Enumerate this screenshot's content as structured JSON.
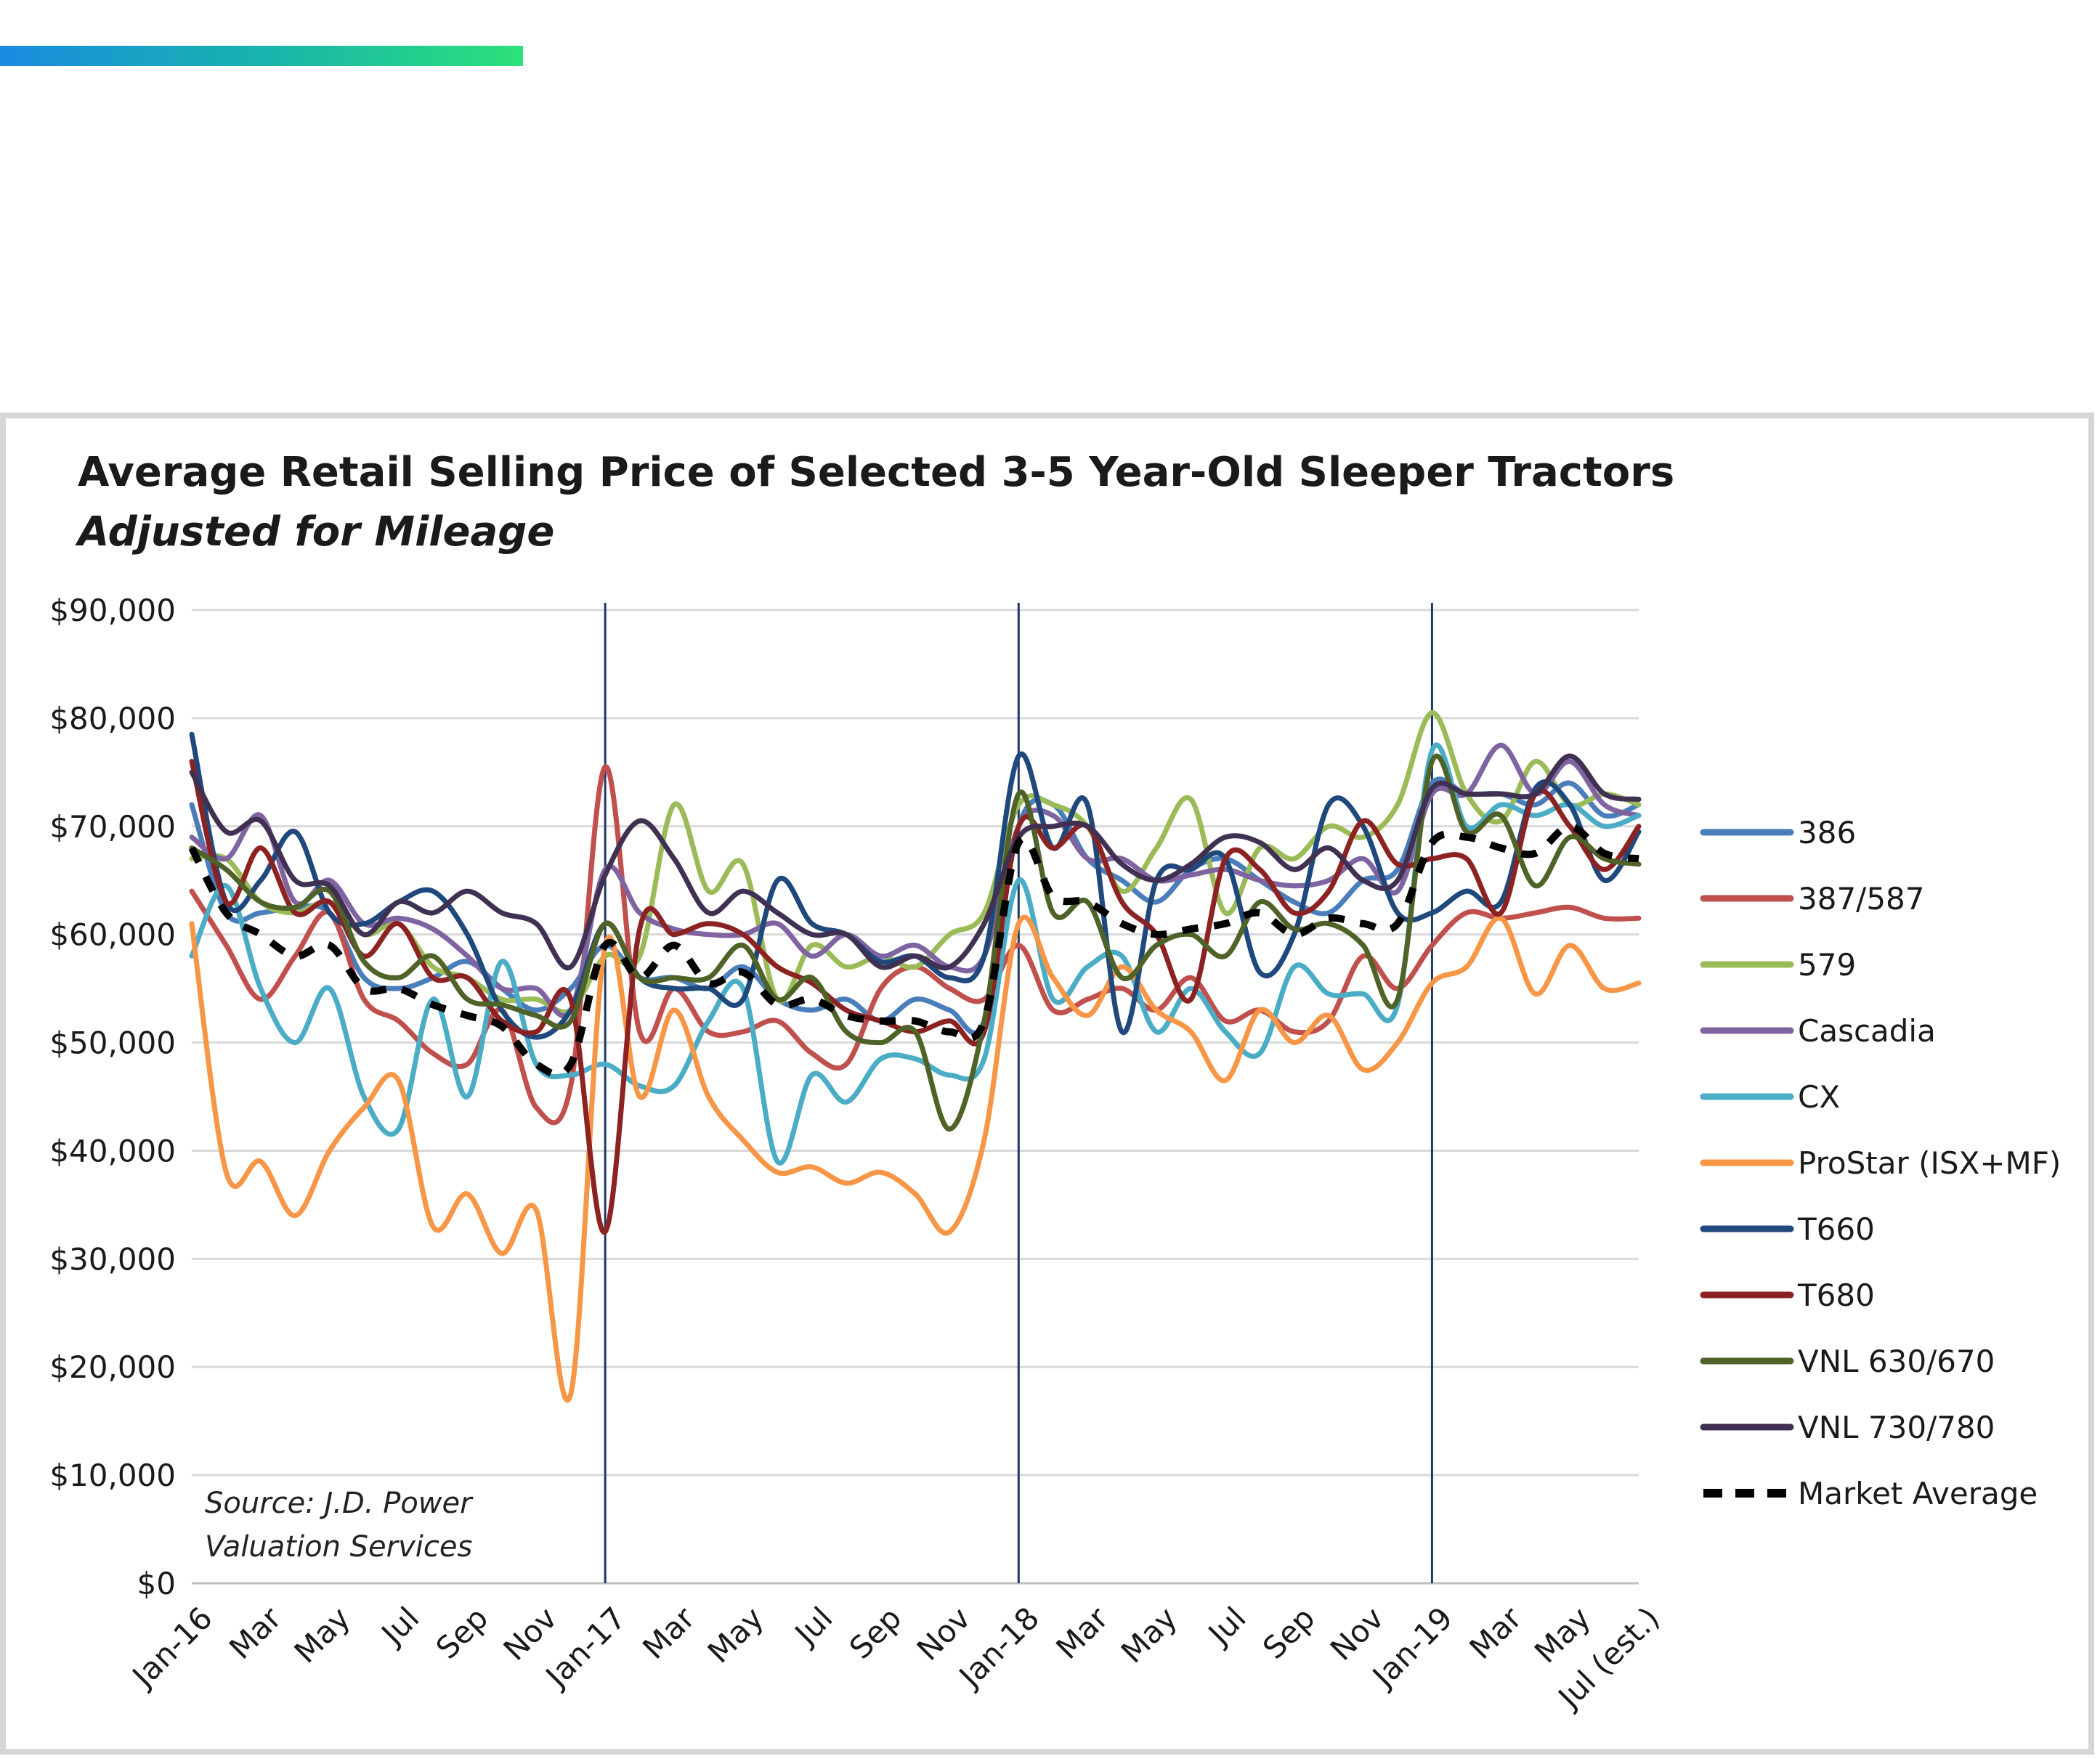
{
  "chart_data": {
    "type": "line",
    "title": "Average Retail Selling Price of Selected 3-5 Year-Old Sleeper Tractors",
    "subtitle": "Adjusted for Mileage",
    "source": [
      "Source: J.D. Power",
      "Valuation Services"
    ],
    "y_ticks": [
      "$0",
      "$10,000",
      "$20,000",
      "$30,000",
      "$40,000",
      "$50,000",
      "$60,000",
      "$70,000",
      "$80,000",
      "$90,000"
    ],
    "ylim": [
      0,
      90000
    ],
    "grid": "horizontal",
    "legend_position": "right",
    "x_ticks": [
      "Jan-16",
      "Mar",
      "May",
      "Jul",
      "Sep",
      "Nov",
      "Jan-17",
      "Mar",
      "May",
      "Jul",
      "Sep",
      "Nov",
      "Jan-18",
      "Mar",
      "May",
      "Jul",
      "Sep",
      "Nov",
      "Jan-19",
      "Mar",
      "May",
      "Jul (est.)"
    ],
    "year_markers": [
      "Jan-17",
      "Jan-18",
      "Jan-19"
    ],
    "x": [
      "Jan-16",
      "Feb-16",
      "Mar-16",
      "Apr-16",
      "May-16",
      "Jun-16",
      "Jul-16",
      "Aug-16",
      "Sep-16",
      "Oct-16",
      "Nov-16",
      "Dec-16",
      "Jan-17",
      "Feb-17",
      "Mar-17",
      "Apr-17",
      "May-17",
      "Jun-17",
      "Jul-17",
      "Aug-17",
      "Sep-17",
      "Oct-17",
      "Nov-17",
      "Dec-17",
      "Jan-18",
      "Feb-18",
      "Mar-18",
      "Apr-18",
      "May-18",
      "Jun-18",
      "Jul-18",
      "Aug-18",
      "Sep-18",
      "Oct-18",
      "Nov-18",
      "Dec-18",
      "Jan-19",
      "Feb-19",
      "Mar-19",
      "Apr-19",
      "May-19",
      "Jun-19",
      "Jul-19"
    ],
    "series": [
      {
        "name": "386",
        "color": "#4a7ebb",
        "dash": false,
        "values": [
          72000,
          62000,
          62000,
          62500,
          62000,
          56000,
          55000,
          56000,
          57500,
          55000,
          53000,
          55000,
          59000,
          56000,
          56000,
          55000,
          57000,
          54000,
          53000,
          54000,
          52000,
          54000,
          53000,
          52000,
          70000,
          72000,
          67000,
          65000,
          63000,
          66000,
          67000,
          65000,
          63000,
          62000,
          65000,
          66000,
          74000,
          73000,
          73000,
          72000,
          74000,
          71000,
          72000
        ]
      },
      {
        "name": "387/587",
        "color": "#c0504d",
        "dash": false,
        "values": [
          64000,
          59000,
          54000,
          58000,
          62000,
          54000,
          52000,
          49000,
          48000,
          53000,
          44000,
          46000,
          75500,
          51000,
          55000,
          51000,
          51000,
          52000,
          49000,
          48000,
          55000,
          57000,
          55000,
          54000,
          59000,
          53000,
          54000,
          55000,
          53000,
          56000,
          52000,
          53000,
          51000,
          52000,
          58000,
          55000,
          59000,
          62000,
          61500,
          62000,
          62500,
          61500,
          61500
        ]
      },
      {
        "name": "579",
        "color": "#9bbb59",
        "dash": false,
        "values": [
          67000,
          67000,
          63000,
          62000,
          63000,
          60000,
          61000,
          57000,
          56000,
          54000,
          54000,
          53000,
          58000,
          58000,
          72000,
          64000,
          66500,
          54000,
          59000,
          57000,
          58000,
          57000,
          60000,
          62000,
          72000,
          72000,
          70000,
          64000,
          68000,
          72500,
          62000,
          68000,
          67000,
          70000,
          69000,
          72000,
          80500,
          73000,
          70500,
          76000,
          72000,
          73000,
          72000
        ]
      },
      {
        "name": "Cascadia",
        "color": "#8064a2",
        "dash": false,
        "values": [
          69000,
          67000,
          71000,
          63000,
          65000,
          61000,
          61500,
          60500,
          58000,
          55000,
          55000,
          53000,
          66000,
          62000,
          60500,
          60000,
          60000,
          61000,
          58000,
          60000,
          58000,
          59000,
          57000,
          58000,
          70000,
          71000,
          67000,
          67000,
          65000,
          65500,
          66000,
          65000,
          64500,
          65000,
          67000,
          64000,
          73000,
          73000,
          77500,
          73000,
          76000,
          72000,
          71000
        ]
      },
      {
        "name": "CX",
        "color": "#4bacc6",
        "dash": false,
        "values": [
          58000,
          64500,
          55000,
          50000,
          55000,
          45000,
          42000,
          54000,
          45000,
          57500,
          48000,
          47000,
          48000,
          46000,
          46000,
          52000,
          55000,
          39000,
          47000,
          44500,
          48500,
          48500,
          47000,
          48500,
          65000,
          54000,
          57000,
          58000,
          51000,
          55000,
          51000,
          49000,
          57000,
          54500,
          54500,
          53500,
          77000,
          70000,
          72000,
          71000,
          72000,
          70000,
          71000
        ]
      },
      {
        "name": "ProStar (ISX+MF)",
        "color": "#f79646",
        "dash": false,
        "values": [
          61000,
          38000,
          39000,
          34000,
          40000,
          44000,
          46500,
          33000,
          36000,
          30500,
          34500,
          17500,
          59000,
          45000,
          53000,
          45000,
          41000,
          38000,
          38500,
          37000,
          38000,
          36000,
          32500,
          41000,
          61000,
          56000,
          52500,
          57000,
          53000,
          51000,
          46500,
          53000,
          50000,
          52500,
          47500,
          50000,
          55500,
          57000,
          61500,
          54500,
          59000,
          55000,
          55500
        ]
      },
      {
        "name": "T660",
        "color": "#1f497d",
        "dash": false,
        "values": [
          78500,
          63000,
          65000,
          69500,
          62000,
          61000,
          63000,
          64000,
          60000,
          53000,
          50500,
          53000,
          61000,
          56000,
          55000,
          55000,
          54000,
          65000,
          61000,
          60000,
          57500,
          58000,
          56000,
          58000,
          76500,
          68000,
          72000,
          51000,
          65000,
          66000,
          67000,
          56500,
          60000,
          72000,
          70000,
          62000,
          62000,
          64000,
          63000,
          73500,
          72000,
          65000,
          69500
        ]
      },
      {
        "name": "T680",
        "color": "#8c2222",
        "dash": false,
        "values": [
          76000,
          63000,
          68000,
          62000,
          63000,
          58000,
          61000,
          56000,
          56000,
          52000,
          51000,
          54000,
          32500,
          60500,
          60000,
          61000,
          60000,
          57000,
          55500,
          53000,
          52000,
          51000,
          52000,
          51000,
          70000,
          68000,
          70000,
          63000,
          60000,
          54000,
          67000,
          66000,
          62000,
          64000,
          70500,
          66500,
          67000,
          67000,
          62000,
          73000,
          70000,
          66000,
          70000
        ]
      },
      {
        "name": "VNL 630/670",
        "color": "#4f6228",
        "dash": false,
        "values": [
          68000,
          66000,
          63000,
          62500,
          64000,
          57500,
          56000,
          58000,
          54000,
          53500,
          52500,
          52000,
          61000,
          56000,
          56000,
          56000,
          59000,
          54000,
          56000,
          51000,
          50000,
          51000,
          42000,
          52000,
          73000,
          62000,
          63000,
          56000,
          59000,
          60000,
          58000,
          63000,
          60500,
          61000,
          59000,
          54000,
          76000,
          69500,
          71000,
          64500,
          69000,
          67000,
          66500
        ]
      },
      {
        "name": "VNL 730/780",
        "color": "#403152",
        "dash": false,
        "values": [
          75000,
          69500,
          70500,
          65000,
          64500,
          60000,
          63000,
          62000,
          64000,
          62000,
          61000,
          57000,
          65500,
          70500,
          67000,
          62000,
          64000,
          62000,
          60000,
          60000,
          57000,
          58000,
          57000,
          61000,
          69000,
          70000,
          70000,
          66500,
          65000,
          66500,
          69000,
          68500,
          66000,
          68000,
          65000,
          65000,
          73500,
          73000,
          73000,
          73000,
          76500,
          73000,
          72500
        ]
      },
      {
        "name": "Market Average",
        "color": "#000000",
        "dash": true,
        "values": [
          68000,
          62000,
          60000,
          58000,
          59000,
          55000,
          55000,
          53500,
          52500,
          51500,
          48000,
          48000,
          59000,
          56000,
          59000,
          55500,
          56500,
          53500,
          54000,
          52500,
          52000,
          52000,
          51000,
          52000,
          68500,
          63500,
          63000,
          61000,
          60000,
          60500,
          61000,
          62000,
          60000,
          61500,
          61000,
          61000,
          68500,
          69000,
          68000,
          67500,
          70000,
          67500,
          67000
        ]
      }
    ]
  }
}
